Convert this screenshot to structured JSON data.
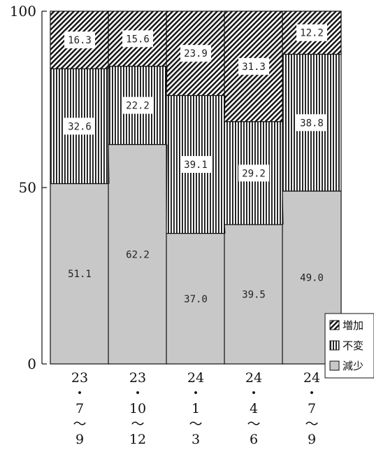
{
  "chart_data": {
    "type": "bar",
    "stacked": true,
    "categories": [
      [
        "23",
        "・",
        "7",
        "～",
        "9"
      ],
      [
        "23",
        "・",
        "10",
        "～",
        "12"
      ],
      [
        "24",
        "・",
        "1",
        "～",
        "3"
      ],
      [
        "24",
        "・",
        "4",
        "～",
        "6"
      ],
      [
        "24",
        "・",
        "7",
        "～",
        "9"
      ]
    ],
    "series": [
      {
        "name": "減少",
        "values": [
          51.1,
          62.2,
          37.0,
          39.5,
          49.0
        ],
        "color": "#c8c8c8",
        "pattern": "solid"
      },
      {
        "name": "不変",
        "values": [
          32.6,
          22.2,
          39.1,
          29.2,
          38.8
        ],
        "color": "#ffffff",
        "pattern": "vertical-lines"
      },
      {
        "name": "増加",
        "values": [
          16.3,
          15.6,
          23.9,
          31.3,
          12.2
        ],
        "color": "#ffffff",
        "pattern": "diagonal-hatch"
      }
    ],
    "data_labels": [
      [
        "51.1",
        "62.2",
        "37.0",
        "39.5",
        "49.0"
      ],
      [
        "32.6",
        "22.2",
        "39.1",
        "29.2",
        "38.8"
      ],
      [
        "16.3",
        "15.6",
        "23.9",
        "31.3",
        "12.2"
      ]
    ],
    "yticks": [
      "0",
      "50",
      "100"
    ],
    "ylim": [
      0,
      100
    ],
    "connector_lines": true,
    "legend": {
      "placement": "bottom-right",
      "items": [
        "増加",
        "不変",
        "減少"
      ]
    },
    "grid": false
  }
}
